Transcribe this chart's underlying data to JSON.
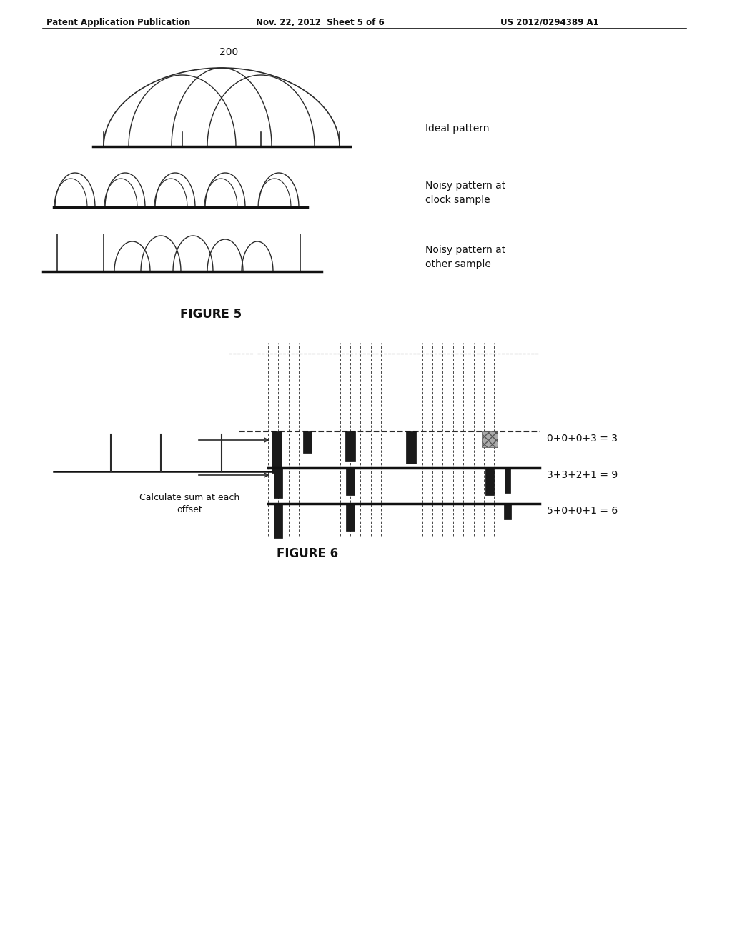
{
  "header_left": "Patent Application Publication",
  "header_mid": "Nov. 22, 2012  Sheet 5 of 6",
  "header_right": "US 2012/0294389 A1",
  "figure5_label": "FIGURE 5",
  "figure6_label": "FIGURE 6",
  "label_200": "200",
  "label_ideal": "Ideal pattern",
  "label_noisy_clock": "Noisy pattern at\nclock sample",
  "label_noisy_other": "Noisy pattern at\nother sample",
  "label_calc": "Calculate sum at each\noffset",
  "label_eq1": "0+0+0+3 = 3",
  "label_eq2": "3+3+2+1 = 9",
  "label_eq3": "5+0+0+1 = 6",
  "bg_color": "#ffffff",
  "line_color": "#2a2a2a",
  "dark_color": "#111111"
}
